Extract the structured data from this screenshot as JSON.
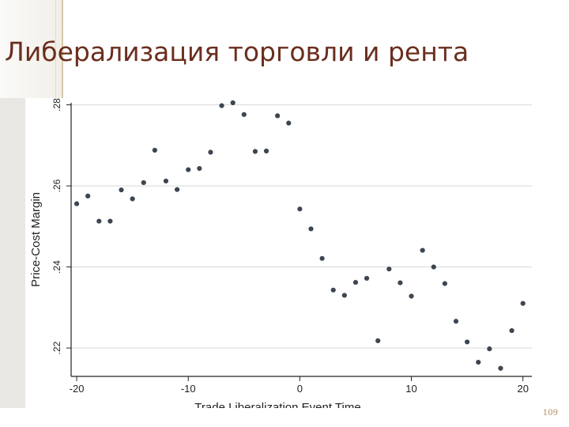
{
  "slide": {
    "title": "Либерализация торговли и рента",
    "page_number": "109"
  },
  "chart_data": {
    "type": "scatter",
    "xlabel": "Trade Liberalization Event Time",
    "ylabel": "Price-Cost Margin",
    "xlim": [
      -20.5,
      20.8
    ],
    "ylim": [
      0.213,
      0.2805
    ],
    "xticks": [
      -20,
      -10,
      0,
      10,
      20
    ],
    "xtick_labels": [
      "-20",
      "-10",
      "0",
      "10",
      "20"
    ],
    "yticks": [
      0.22,
      0.24,
      0.26,
      0.28
    ],
    "ytick_labels": [
      ".22",
      ".24",
      ".26",
      ".28"
    ],
    "grid": "horizontal",
    "marker_color": "#3d4650",
    "x": [
      -20,
      -19,
      -18,
      -17,
      -16,
      -15,
      -14,
      -13,
      -12,
      -11,
      -10,
      -9,
      -8,
      -7,
      -6,
      -5,
      -4,
      -3,
      -2,
      -1,
      0,
      1,
      2,
      3,
      4,
      5,
      6,
      7,
      8,
      9,
      10,
      11,
      12,
      13,
      14,
      15,
      16,
      17,
      18,
      19,
      20
    ],
    "y": [
      0.2556,
      0.2575,
      0.2513,
      0.2513,
      0.259,
      0.2568,
      0.2608,
      0.2688,
      0.2612,
      0.2591,
      0.264,
      0.2643,
      0.2683,
      0.2798,
      0.2805,
      0.2776,
      0.2685,
      0.2686,
      0.2773,
      0.2755,
      0.2543,
      0.2494,
      0.2421,
      0.2343,
      0.233,
      0.2362,
      0.2372,
      0.2218,
      0.2395,
      0.2361,
      0.2328,
      0.2441,
      0.24,
      0.2359,
      0.2266,
      0.2215,
      0.2165,
      0.2198,
      0.215,
      0.2243,
      0.231
    ]
  }
}
